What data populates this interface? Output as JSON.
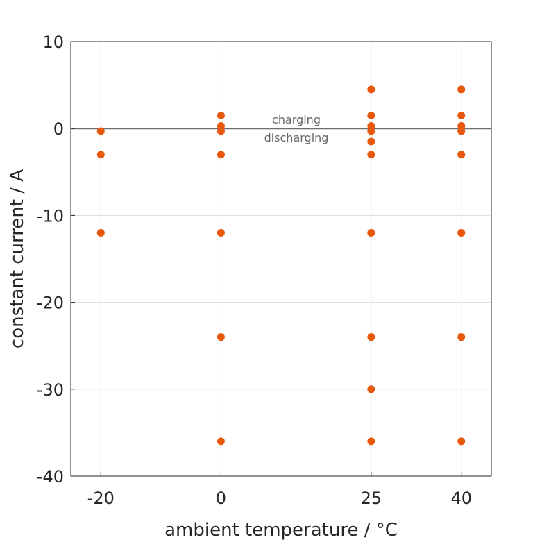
{
  "chart_data": {
    "type": "scatter",
    "title": "",
    "xlabel": "ambient temperature / °C",
    "ylabel": "constant current / A",
    "xlim": [
      -25,
      45
    ],
    "ylim": [
      -40,
      10
    ],
    "xticks": [
      -20,
      0,
      25,
      40
    ],
    "yticks": [
      -40,
      -30,
      -20,
      -10,
      0,
      10
    ],
    "grid": true,
    "color": "#e8580c",
    "reference_line": {
      "y": 0,
      "color": "#6e6e6e"
    },
    "annotations": {
      "above": "charging",
      "below": "discharging"
    },
    "points": [
      [
        -20,
        -0.3
      ],
      [
        -20,
        -3
      ],
      [
        -20,
        -12
      ],
      [
        0,
        1.5
      ],
      [
        0,
        0.3
      ],
      [
        0,
        -0.3
      ],
      [
        0,
        -3
      ],
      [
        0,
        -12
      ],
      [
        0,
        -24
      ],
      [
        0,
        -36
      ],
      [
        25,
        4.5
      ],
      [
        25,
        1.5
      ],
      [
        25,
        0.3
      ],
      [
        25,
        -0.3
      ],
      [
        25,
        -1.5
      ],
      [
        25,
        -3
      ],
      [
        25,
        -12
      ],
      [
        25,
        -24
      ],
      [
        25,
        -30
      ],
      [
        25,
        -36
      ],
      [
        40,
        4.5
      ],
      [
        40,
        1.5
      ],
      [
        40,
        0.3
      ],
      [
        40,
        -0.3
      ],
      [
        40,
        -3
      ],
      [
        40,
        -12
      ],
      [
        40,
        -24
      ],
      [
        40,
        -36
      ]
    ]
  }
}
